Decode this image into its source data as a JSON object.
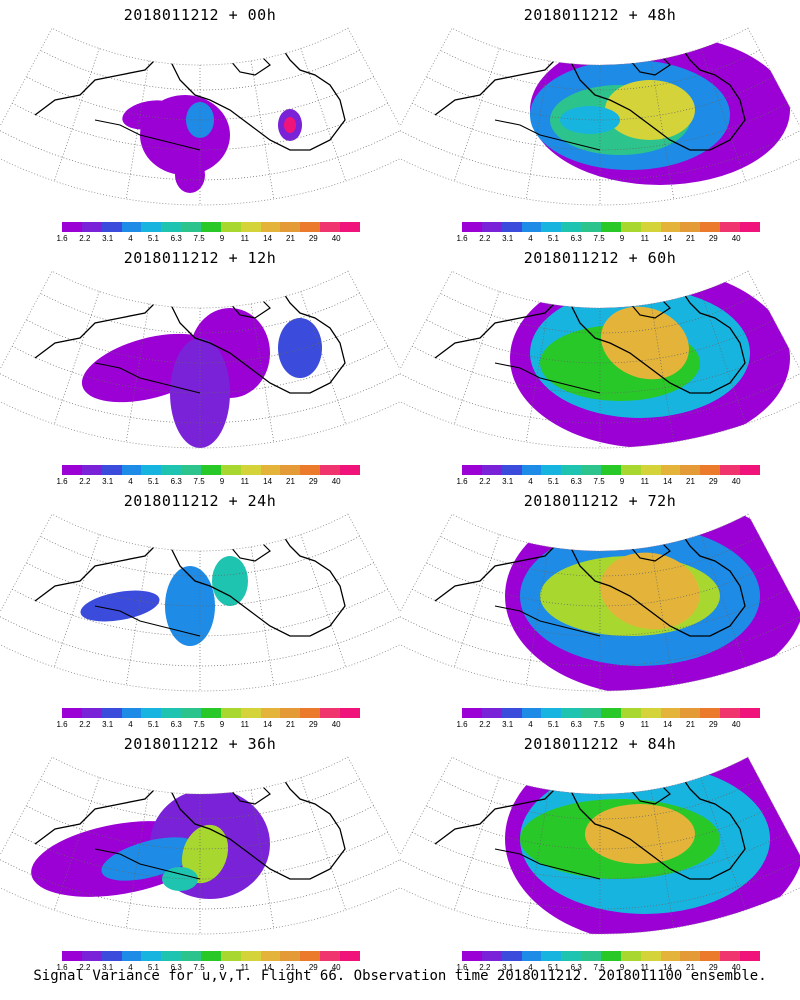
{
  "panels": [
    {
      "title": "2018011212 + 00h",
      "spread": 0
    },
    {
      "title": "2018011212 + 48h",
      "spread": 4
    },
    {
      "title": "2018011212 + 12h",
      "spread": 1
    },
    {
      "title": "2018011212 + 60h",
      "spread": 5
    },
    {
      "title": "2018011212 + 24h",
      "spread": 2
    },
    {
      "title": "2018011212 + 72h",
      "spread": 6
    },
    {
      "title": "2018011212 + 36h",
      "spread": 3
    },
    {
      "title": "2018011212 + 84h",
      "spread": 7
    }
  ],
  "colorbar": {
    "colors": [
      "#9b00d4",
      "#7a22d8",
      "#3b4bdc",
      "#1e8be6",
      "#18b4e0",
      "#1ec4b0",
      "#2cc48c",
      "#28c828",
      "#a8d830",
      "#d4d43a",
      "#e4b43a",
      "#e49a36",
      "#ec7a2c",
      "#f0346e",
      "#f0147a"
    ],
    "labels": [
      "1.6",
      "2.2",
      "3.1",
      "4",
      "5.1",
      "6.3",
      "7.5",
      "9",
      "11",
      "14",
      "21",
      "29",
      "40"
    ]
  },
  "caption": "Signal Variance for u,v,T. Flight 66. Observation time 2018011212. 2018011100 ensemble."
}
